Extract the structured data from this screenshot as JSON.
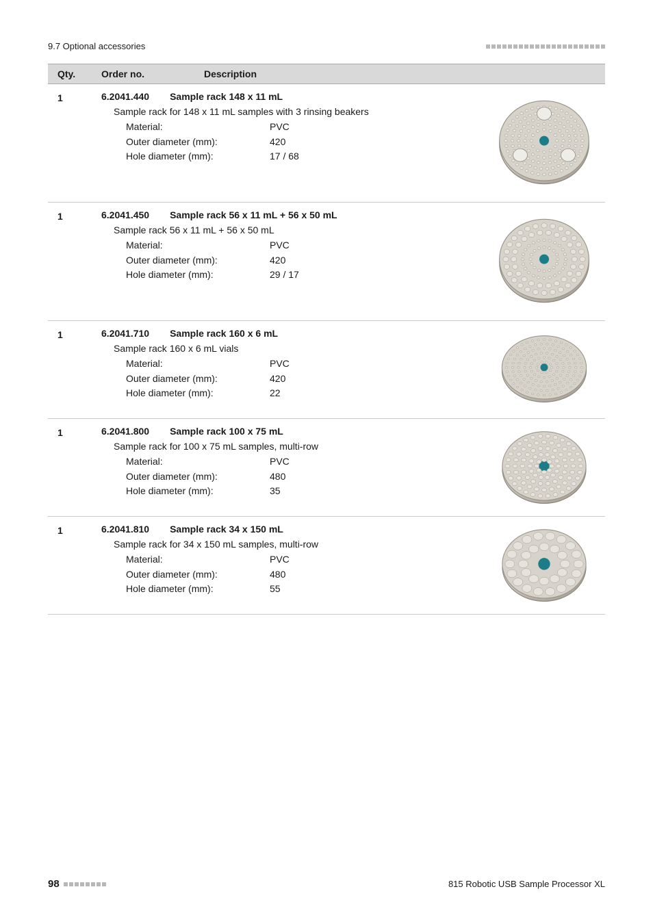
{
  "header": {
    "section": "9.7 Optional accessories"
  },
  "table_head": {
    "qty": "Qty.",
    "order": "Order no.",
    "desc": "Description"
  },
  "entries": [
    {
      "qty": "1",
      "order_no": "6.2041.440",
      "name": "Sample rack 148 x 11 mL",
      "desc": "Sample rack for 148 x 11 mL samples with 3 rinsing beakers",
      "material": "PVC",
      "outer_diameter": "420",
      "hole_diameter": "17 / 68"
    },
    {
      "qty": "1",
      "order_no": "6.2041.450",
      "name": "Sample rack 56 x 11 mL + 56 x 50 mL",
      "desc": "Sample rack 56 x 11 mL + 56 x 50 mL",
      "material": "PVC",
      "outer_diameter": "420",
      "hole_diameter": "29 / 17"
    },
    {
      "qty": "1",
      "order_no": "6.2041.710",
      "name": "Sample rack 160 x 6 mL",
      "desc": "Sample rack 160 x 6 mL vials",
      "material": "PVC",
      "outer_diameter": "420",
      "hole_diameter": "22"
    },
    {
      "qty": "1",
      "order_no": "6.2041.800",
      "name": "Sample rack 100 x 75 mL",
      "desc": "Sample rack for 100 x 75 mL samples, multi-row",
      "material": "PVC",
      "outer_diameter": "480",
      "hole_diameter": "35"
    },
    {
      "qty": "1",
      "order_no": "6.2041.810",
      "name": "Sample rack 34 x 150 mL",
      "desc": "Sample rack for 34 x 150 mL samples, multi-row",
      "material": "PVC",
      "outer_diameter": "480",
      "hole_diameter": "55"
    }
  ],
  "spec_labels": {
    "material": "Material:",
    "outer_diameter": "Outer diameter (mm):",
    "hole_diameter": "Hole diameter (mm):"
  },
  "footer": {
    "page": "98",
    "product": "815 Robotic USB Sample Processor XL"
  },
  "colors": {
    "text": "#1a1a1a",
    "header_bg": "#d9d9d9",
    "rule": "#c9c9c9",
    "teal": "#1b7d87",
    "rack_fill": "#c9c5bf",
    "rack_stroke": "#8a8378",
    "hole": "#e6e3dc",
    "dot_gray": "#b8b8b8"
  }
}
